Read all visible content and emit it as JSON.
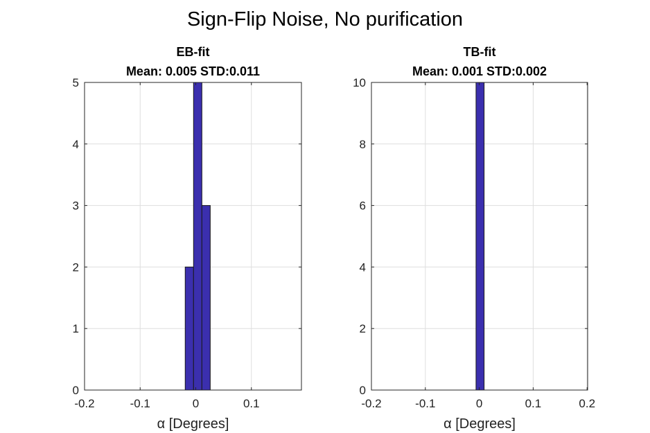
{
  "figure_title": "Sign-Flip Noise, No purification",
  "colors": {
    "bar": "#3b2fae",
    "grid": "#dedede",
    "axis": "#262626"
  },
  "chart_data": [
    {
      "type": "bar",
      "title_lines": [
        "EB-fit",
        "Mean: 0.005 STD:0.011"
      ],
      "xlabel": "α [Degrees]",
      "ylabel": "",
      "xlim": [
        -0.2,
        0.19
      ],
      "ylim": [
        0,
        5
      ],
      "xticks": [
        -0.2,
        -0.1,
        0,
        0.1
      ],
      "xtick_labels": [
        "-0.2",
        "-0.1",
        "0",
        "0.1"
      ],
      "yticks": [
        0,
        1,
        2,
        3,
        4,
        5
      ],
      "ytick_labels": [
        "0",
        "1",
        "2",
        "3",
        "4",
        "5"
      ],
      "grid": true,
      "bins": [
        {
          "x0": -0.019,
          "x1": -0.004,
          "value": 2
        },
        {
          "x0": -0.004,
          "x1": 0.011,
          "value": 5
        },
        {
          "x0": 0.011,
          "x1": 0.026,
          "value": 3
        }
      ]
    },
    {
      "type": "bar",
      "title_lines": [
        "TB-fit",
        "Mean: 0.001 STD:0.002"
      ],
      "xlabel": "α [Degrees]",
      "ylabel": "",
      "xlim": [
        -0.2,
        0.201
      ],
      "ylim": [
        0,
        10
      ],
      "xticks": [
        -0.2,
        -0.1,
        0,
        0.1,
        0.2
      ],
      "xtick_labels": [
        "-0.2",
        "-0.1",
        "0",
        "0.1",
        "0.2"
      ],
      "yticks": [
        0,
        2,
        4,
        6,
        8,
        10
      ],
      "ytick_labels": [
        "0",
        "2",
        "4",
        "6",
        "8",
        "10"
      ],
      "grid": true,
      "bins": [
        {
          "x0": -0.006,
          "x1": 0.009,
          "value": 10
        }
      ]
    }
  ]
}
